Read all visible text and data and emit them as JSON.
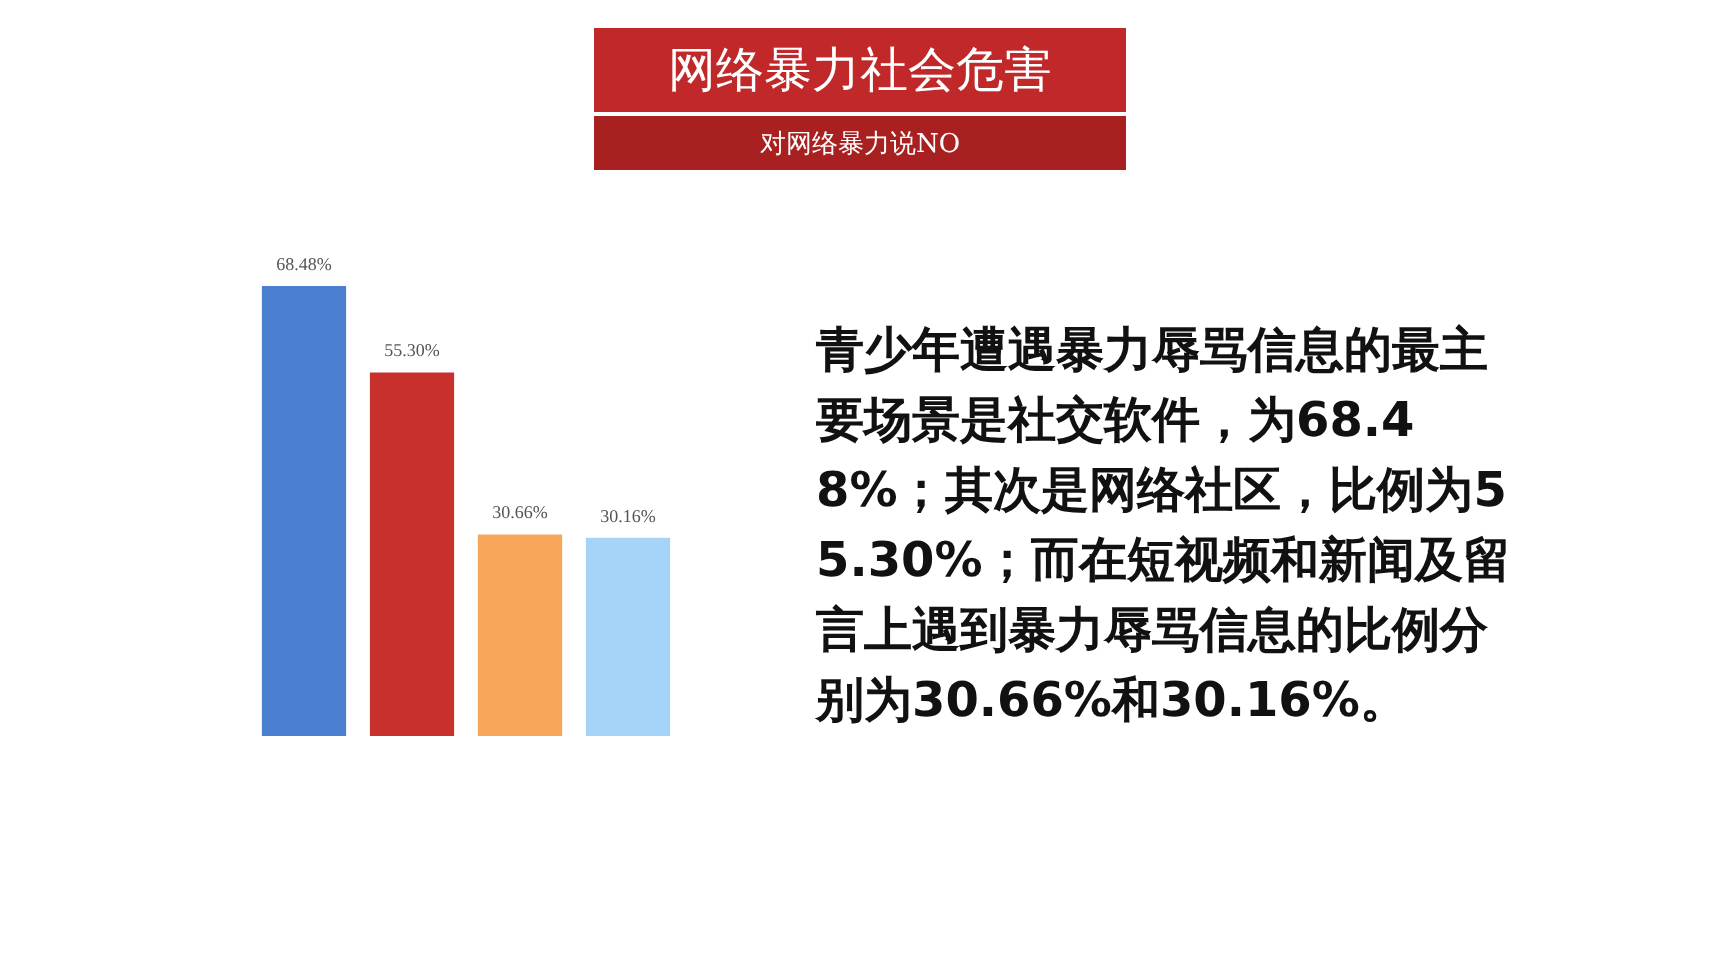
{
  "chart_data": {
    "type": "bar",
    "title": "网络暴力社会危害",
    "subtitle": "对网络暴力说NO",
    "categories": [
      null,
      null,
      null,
      null
    ],
    "values": [
      68.48,
      55.3,
      30.66,
      30.16
    ],
    "colors": [
      "#4a7fd0",
      "#c8302c",
      "#f7a65a",
      "#a6d4f8"
    ],
    "value_labels": [
      "68.48%",
      "55.30%",
      "30.66%",
      "30.16%"
    ],
    "annotations": [
      "青少年遭遇暴力辱骂信息的最主要场景是社交软件，为68.48%；其次是网络社区，比例为55.30%；而在短视频和新闻及留言上遇到暴力辱骂信息的比例分别为30.66%和30.16%。"
    ],
    "relative": false,
    "grid": false,
    "legend": false
  }
}
